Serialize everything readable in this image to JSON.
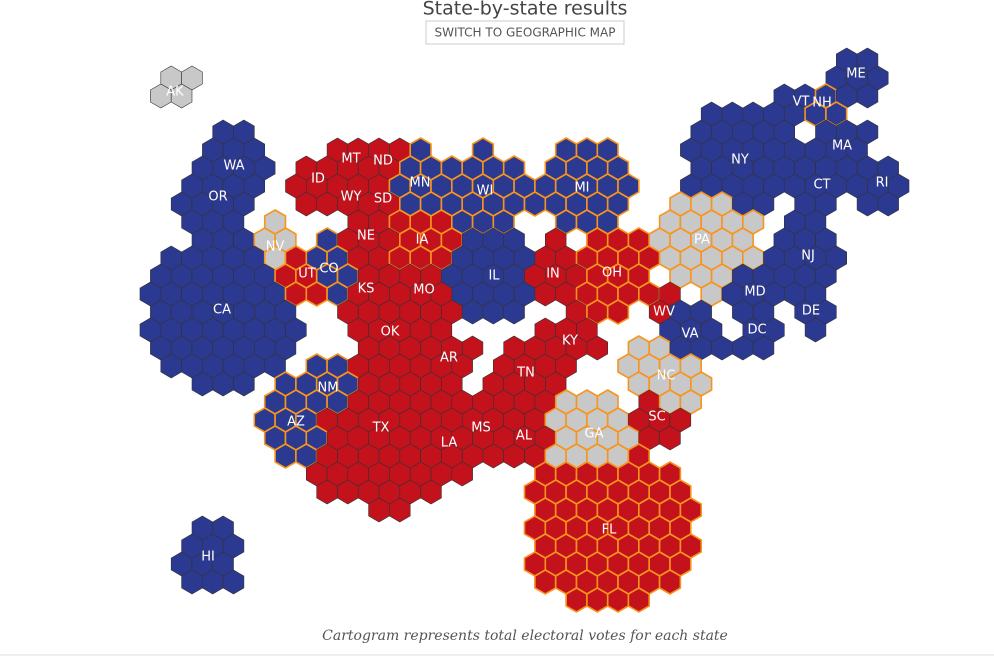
{
  "title": "State-by-state results",
  "button": "SWITCH TO GEOGRAPHIC MAP",
  "footnote": "Cartogram represents total electoral votes for each state",
  "colors": {
    "R": "#c3121c",
    "D": "#2b3990",
    "T": "#c8c8c8",
    "battleground": "#f7941d"
  },
  "states": [
    {
      "label": "AK",
      "winner": "T",
      "battleground": false
    },
    {
      "label": "WA",
      "winner": "D",
      "battleground": false
    },
    {
      "label": "OR",
      "winner": "D",
      "battleground": false
    },
    {
      "label": "CA",
      "winner": "D",
      "battleground": false
    },
    {
      "label": "NV",
      "winner": "T",
      "battleground": true
    },
    {
      "label": "ID",
      "winner": "R",
      "battleground": false
    },
    {
      "label": "MT",
      "winner": "R",
      "battleground": false
    },
    {
      "label": "ND",
      "winner": "R",
      "battleground": false
    },
    {
      "label": "WY",
      "winner": "R",
      "battleground": false
    },
    {
      "label": "SD",
      "winner": "R",
      "battleground": false
    },
    {
      "label": "UT",
      "winner": "R",
      "battleground": true
    },
    {
      "label": "CO",
      "winner": "D",
      "battleground": true
    },
    {
      "label": "NE",
      "winner": "R",
      "battleground": false
    },
    {
      "label": "KS",
      "winner": "R",
      "battleground": false
    },
    {
      "label": "AZ",
      "winner": "D",
      "battleground": true
    },
    {
      "label": "NM",
      "winner": "D",
      "battleground": true
    },
    {
      "label": "OK",
      "winner": "R",
      "battleground": false
    },
    {
      "label": "TX",
      "winner": "R",
      "battleground": false
    },
    {
      "label": "MN",
      "winner": "D",
      "battleground": true
    },
    {
      "label": "WI",
      "winner": "D",
      "battleground": true
    },
    {
      "label": "IA",
      "winner": "R",
      "battleground": true
    },
    {
      "label": "MO",
      "winner": "R",
      "battleground": false
    },
    {
      "label": "AR",
      "winner": "R",
      "battleground": false
    },
    {
      "label": "LA",
      "winner": "R",
      "battleground": false
    },
    {
      "label": "IL",
      "winner": "D",
      "battleground": false
    },
    {
      "label": "MI",
      "winner": "D",
      "battleground": true
    },
    {
      "label": "IN",
      "winner": "R",
      "battleground": false
    },
    {
      "label": "OH",
      "winner": "R",
      "battleground": true
    },
    {
      "label": "KY",
      "winner": "R",
      "battleground": false
    },
    {
      "label": "TN",
      "winner": "R",
      "battleground": false
    },
    {
      "label": "MS",
      "winner": "R",
      "battleground": false
    },
    {
      "label": "AL",
      "winner": "R",
      "battleground": false
    },
    {
      "label": "GA",
      "winner": "T",
      "battleground": true
    },
    {
      "label": "FL",
      "winner": "R",
      "battleground": true
    },
    {
      "label": "SC",
      "winner": "R",
      "battleground": false
    },
    {
      "label": "NC",
      "winner": "T",
      "battleground": true
    },
    {
      "label": "VA",
      "winner": "D",
      "battleground": false
    },
    {
      "label": "WV",
      "winner": "R",
      "battleground": false
    },
    {
      "label": "PA",
      "winner": "T",
      "battleground": true
    },
    {
      "label": "NY",
      "winner": "D",
      "battleground": false
    },
    {
      "label": "VT",
      "winner": "D",
      "battleground": false
    },
    {
      "label": "NH",
      "winner": "D",
      "battleground": true
    },
    {
      "label": "ME",
      "winner": "D",
      "battleground": false
    },
    {
      "label": "MA",
      "winner": "D",
      "battleground": false
    },
    {
      "label": "CT",
      "winner": "D",
      "battleground": false
    },
    {
      "label": "RI",
      "winner": "D",
      "battleground": false
    },
    {
      "label": "NJ",
      "winner": "D",
      "battleground": false
    },
    {
      "label": "DE",
      "winner": "D",
      "battleground": false
    },
    {
      "label": "MD",
      "winner": "D",
      "battleground": false
    },
    {
      "label": "DC",
      "winner": "D",
      "battleground": false
    },
    {
      "label": "HI",
      "winner": "D",
      "battleground": false
    }
  ]
}
